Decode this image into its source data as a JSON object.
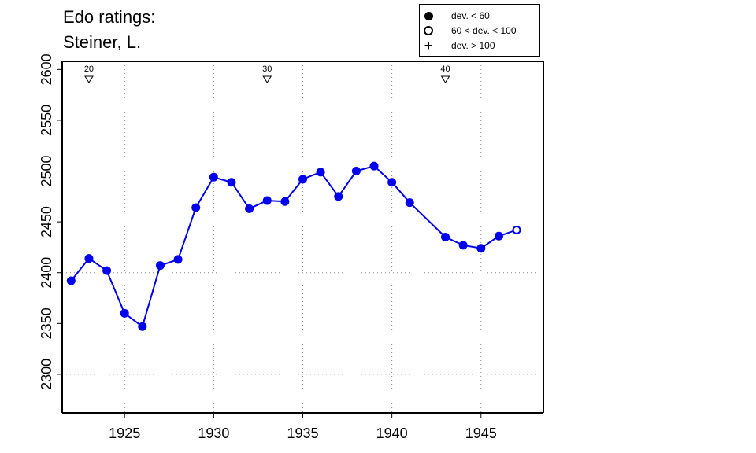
{
  "title_line_1": "Edo ratings:",
  "title_line_2": "Steiner, L.",
  "legend": {
    "items": [
      {
        "symbol": "filled-circle",
        "label": "dev. < 60"
      },
      {
        "symbol": "open-circle",
        "label": "60 < dev. < 100"
      },
      {
        "symbol": "plus",
        "label": "dev. > 100"
      }
    ]
  },
  "colors": {
    "series": "#0000ee",
    "axis": "#000000",
    "grid": "#888888"
  },
  "chart_data": {
    "type": "line",
    "title": "Edo ratings: Steiner, L.",
    "xlabel": "",
    "ylabel": "",
    "xlim": [
      1921.5,
      1948.5
    ],
    "ylim": [
      2262,
      2608
    ],
    "x_ticks": [
      1925,
      1930,
      1935,
      1940,
      1945
    ],
    "y_ticks": [
      2300,
      2350,
      2400,
      2450,
      2500,
      2550,
      2600
    ],
    "x_grid": [
      1925,
      1930,
      1935,
      1940,
      1945
    ],
    "y_grid": [
      2300,
      2400,
      2500
    ],
    "grid": true,
    "legend_position": "top-right",
    "age_markers": [
      {
        "x": 1923,
        "label": "20"
      },
      {
        "x": 1933,
        "label": "30"
      },
      {
        "x": 1943,
        "label": "40"
      }
    ],
    "series": [
      {
        "points": [
          {
            "x": 1922,
            "y": 2392,
            "dev": "low"
          },
          {
            "x": 1923,
            "y": 2414,
            "dev": "low"
          },
          {
            "x": 1924,
            "y": 2402,
            "dev": "low"
          },
          {
            "x": 1925,
            "y": 2360,
            "dev": "low"
          },
          {
            "x": 1926,
            "y": 2347,
            "dev": "low"
          },
          {
            "x": 1927,
            "y": 2407,
            "dev": "low"
          },
          {
            "x": 1928,
            "y": 2413,
            "dev": "low"
          },
          {
            "x": 1929,
            "y": 2464,
            "dev": "low"
          },
          {
            "x": 1930,
            "y": 2494,
            "dev": "low"
          },
          {
            "x": 1931,
            "y": 2489,
            "dev": "low"
          },
          {
            "x": 1932,
            "y": 2463,
            "dev": "low"
          },
          {
            "x": 1933,
            "y": 2471,
            "dev": "low"
          },
          {
            "x": 1934,
            "y": 2470,
            "dev": "low"
          },
          {
            "x": 1935,
            "y": 2492,
            "dev": "low"
          },
          {
            "x": 1936,
            "y": 2499,
            "dev": "low"
          },
          {
            "x": 1937,
            "y": 2475,
            "dev": "low"
          },
          {
            "x": 1938,
            "y": 2500,
            "dev": "low"
          },
          {
            "x": 1939,
            "y": 2505,
            "dev": "low"
          },
          {
            "x": 1940,
            "y": 2489,
            "dev": "low"
          },
          {
            "x": 1941,
            "y": 2469,
            "dev": "low"
          },
          {
            "x": 1943,
            "y": 2435,
            "dev": "low"
          },
          {
            "x": 1944,
            "y": 2427,
            "dev": "low"
          },
          {
            "x": 1945,
            "y": 2424,
            "dev": "low"
          },
          {
            "x": 1946,
            "y": 2436,
            "dev": "low"
          },
          {
            "x": 1947,
            "y": 2442,
            "dev": "mid"
          }
        ]
      }
    ]
  }
}
